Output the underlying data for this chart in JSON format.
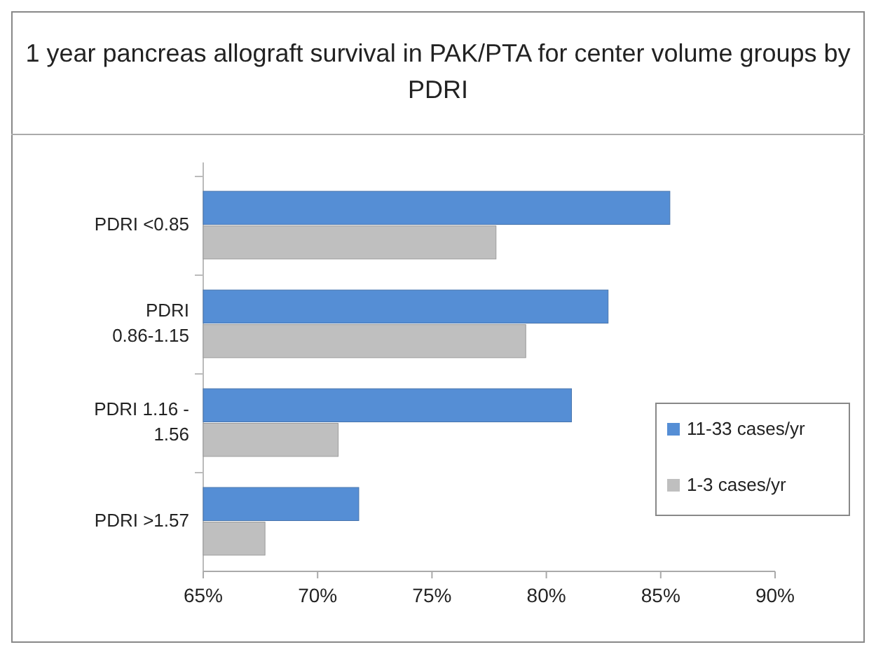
{
  "chart_data": {
    "type": "bar",
    "orientation": "horizontal",
    "title": "1 year pancreas allograft survival in PAK/PTA for center volume groups by PDRI",
    "categories": [
      "PDRI <0.85",
      "PDRI 0.86-1.15",
      "PDRI 1.16 - 1.56",
      "PDRI >1.57"
    ],
    "series": [
      {
        "name": "11-33 cases/yr",
        "color": "#558ed5",
        "values": [
          85.4,
          82.7,
          81.1,
          71.8
        ]
      },
      {
        "name": "1-3 cases/yr",
        "color": "#bfbfbf",
        "values": [
          77.8,
          79.1,
          70.9,
          67.7
        ]
      }
    ],
    "xlim": [
      65,
      90
    ],
    "xticks": [
      {
        "value": 65,
        "label": "65%"
      },
      {
        "value": 70,
        "label": "70%"
      },
      {
        "value": 75,
        "label": "75%"
      },
      {
        "value": 80,
        "label": "80%"
      },
      {
        "value": 85,
        "label": "85%"
      },
      {
        "value": 90,
        "label": "90%"
      }
    ],
    "grid": false,
    "legend": "right"
  }
}
